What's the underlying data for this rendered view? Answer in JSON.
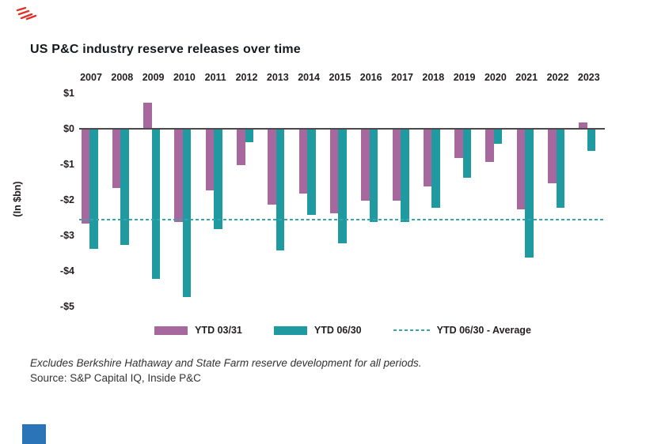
{
  "page": {
    "title": "US P&C industry reserve releases over time",
    "footnote": "Excludes Berkshire Hathaway and State Farm reserve development for all periods.",
    "source": "Source: S&P Capital IQ, Inside P&C"
  },
  "colors": {
    "series_purple": "#a7689d",
    "series_teal": "#1f9aa1",
    "average_line": "#33a7ad",
    "axis": "#4a4a4c",
    "text_dark": "#231f20",
    "brand_red": "#e03127",
    "brand_blue": "#2c74b8"
  },
  "chart_data": {
    "type": "bar",
    "title": "US P&C industry reserve releases over time",
    "xlabel": "",
    "ylabel": "(In $bn)",
    "ylim": [
      -5,
      1
    ],
    "grid": false,
    "legend_position": "bottom",
    "categories": [
      "2007",
      "2008",
      "2009",
      "2010",
      "2011",
      "2012",
      "2013",
      "2014",
      "2015",
      "2016",
      "2017",
      "2018",
      "2019",
      "2020",
      "2021",
      "2022",
      "2023"
    ],
    "series": [
      {
        "name": "YTD 03/31",
        "color_key": "series_purple",
        "values": [
          -2.65,
          -1.65,
          0.75,
          -2.6,
          -1.7,
          -1.0,
          -2.1,
          -1.8,
          -2.35,
          -2.0,
          -2.0,
          -1.6,
          -0.8,
          -0.9,
          -2.25,
          -1.5,
          0.2
        ]
      },
      {
        "name": "YTD 06/30",
        "color_key": "series_teal",
        "values": [
          -3.35,
          -3.25,
          -4.2,
          -4.7,
          -2.8,
          -0.35,
          -3.4,
          -2.4,
          -3.2,
          -2.6,
          -2.6,
          -2.2,
          -1.35,
          -0.4,
          -3.6,
          -2.2,
          -0.6
        ]
      }
    ],
    "average_line": {
      "label": "YTD 06/30 - Average",
      "value": -2.54
    },
    "y_ticks": [
      {
        "label": "$1",
        "value": 1
      },
      {
        "label": "$0",
        "value": 0
      },
      {
        "label": "-$1",
        "value": -1
      },
      {
        "label": "-$2",
        "value": -2
      },
      {
        "label": "-$3",
        "value": -3
      },
      {
        "label": "-$4",
        "value": -4
      },
      {
        "label": "-$5",
        "value": -5
      }
    ]
  }
}
